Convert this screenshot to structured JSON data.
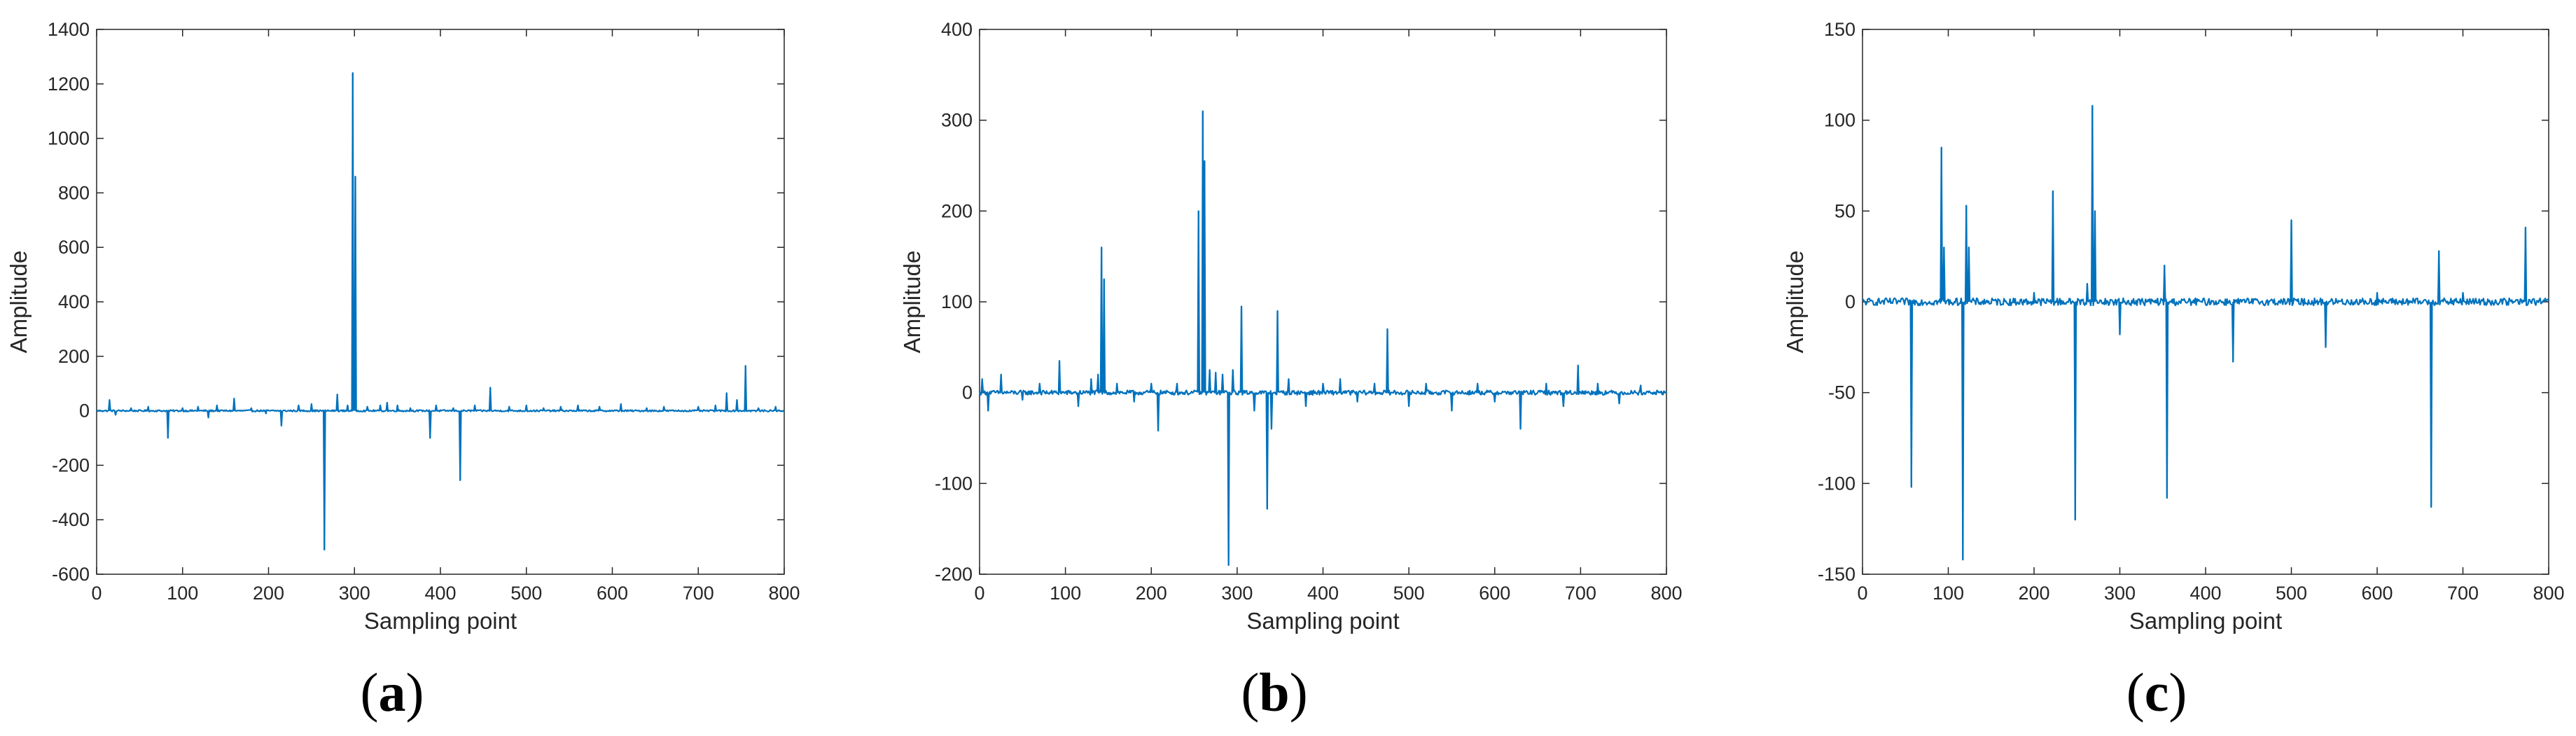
{
  "figure": {
    "series_color": "#0072BD",
    "axis_color": "#262626"
  },
  "chart_data": [
    {
      "type": "line",
      "panel_label": {
        "open": "(",
        "letter": "a",
        "close": ")"
      },
      "xlabel": "Sampling point",
      "ylabel": "Amplitude",
      "xlim": [
        0,
        800
      ],
      "ylim": [
        -600,
        1400
      ],
      "xticks": [
        0,
        100,
        200,
        300,
        400,
        500,
        600,
        700,
        800
      ],
      "yticks": [
        -600,
        -400,
        -200,
        0,
        200,
        400,
        600,
        800,
        1000,
        1200,
        1400
      ],
      "noise_amplitude": 3,
      "spikes": [
        [
          15,
          40
        ],
        [
          22,
          -15
        ],
        [
          40,
          10
        ],
        [
          60,
          15
        ],
        [
          83,
          -100
        ],
        [
          100,
          10
        ],
        [
          118,
          15
        ],
        [
          130,
          -25
        ],
        [
          140,
          20
        ],
        [
          160,
          45
        ],
        [
          180,
          10
        ],
        [
          197,
          -10
        ],
        [
          215,
          -55
        ],
        [
          235,
          20
        ],
        [
          250,
          25
        ],
        [
          265,
          -510
        ],
        [
          280,
          60
        ],
        [
          292,
          20
        ],
        [
          298,
          1240
        ],
        [
          301,
          860
        ],
        [
          315,
          15
        ],
        [
          330,
          20
        ],
        [
          338,
          30
        ],
        [
          350,
          20
        ],
        [
          365,
          10
        ],
        [
          388,
          -100
        ],
        [
          395,
          20
        ],
        [
          415,
          10
        ],
        [
          423,
          -255
        ],
        [
          440,
          20
        ],
        [
          458,
          85
        ],
        [
          480,
          15
        ],
        [
          500,
          20
        ],
        [
          520,
          10
        ],
        [
          540,
          15
        ],
        [
          560,
          20
        ],
        [
          585,
          15
        ],
        [
          610,
          25
        ],
        [
          640,
          10
        ],
        [
          660,
          15
        ],
        [
          700,
          15
        ],
        [
          720,
          20
        ],
        [
          733,
          65
        ],
        [
          745,
          40
        ],
        [
          755,
          165
        ],
        [
          770,
          10
        ],
        [
          790,
          15
        ]
      ]
    },
    {
      "type": "line",
      "panel_label": {
        "open": "(",
        "letter": "b",
        "close": ")"
      },
      "xlabel": "Sampling point",
      "ylabel": "Amplitude",
      "xlim": [
        0,
        800
      ],
      "ylim": [
        -200,
        400
      ],
      "xticks": [
        0,
        100,
        200,
        300,
        400,
        500,
        600,
        700,
        800
      ],
      "yticks": [
        -200,
        -100,
        0,
        100,
        200,
        300,
        400
      ],
      "noise_amplitude": 2.5,
      "spikes": [
        [
          3,
          15
        ],
        [
          10,
          -20
        ],
        [
          25,
          20
        ],
        [
          50,
          -8
        ],
        [
          70,
          10
        ],
        [
          93,
          35
        ],
        [
          115,
          -15
        ],
        [
          130,
          15
        ],
        [
          138,
          20
        ],
        [
          142,
          160
        ],
        [
          145,
          125
        ],
        [
          160,
          10
        ],
        [
          180,
          -10
        ],
        [
          200,
          10
        ],
        [
          208,
          -42
        ],
        [
          230,
          10
        ],
        [
          255,
          200
        ],
        [
          260,
          310
        ],
        [
          262,
          255
        ],
        [
          268,
          25
        ],
        [
          275,
          22
        ],
        [
          283,
          20
        ],
        [
          290,
          -190
        ],
        [
          295,
          25
        ],
        [
          305,
          95
        ],
        [
          320,
          -20
        ],
        [
          335,
          -128
        ],
        [
          340,
          -40
        ],
        [
          347,
          90
        ],
        [
          360,
          15
        ],
        [
          380,
          -15
        ],
        [
          400,
          10
        ],
        [
          420,
          15
        ],
        [
          440,
          -10
        ],
        [
          460,
          10
        ],
        [
          475,
          70
        ],
        [
          500,
          -15
        ],
        [
          520,
          10
        ],
        [
          550,
          -20
        ],
        [
          580,
          10
        ],
        [
          600,
          -10
        ],
        [
          630,
          -40
        ],
        [
          660,
          10
        ],
        [
          680,
          -15
        ],
        [
          697,
          30
        ],
        [
          720,
          10
        ],
        [
          745,
          -12
        ],
        [
          770,
          8
        ]
      ]
    },
    {
      "type": "line",
      "panel_label": {
        "open": "(",
        "letter": "c",
        "close": ")"
      },
      "xlabel": "Sampling point",
      "ylabel": "Amplitude",
      "xlim": [
        0,
        800
      ],
      "ylim": [
        -150,
        150
      ],
      "xticks": [
        0,
        100,
        200,
        300,
        400,
        500,
        600,
        700,
        800
      ],
      "yticks": [
        -150,
        -100,
        -50,
        0,
        50,
        100,
        150
      ],
      "noise_amplitude": 2,
      "spikes": [
        [
          57,
          -102
        ],
        [
          92,
          85
        ],
        [
          95,
          30
        ],
        [
          117,
          -142
        ],
        [
          121,
          53
        ],
        [
          124,
          30
        ],
        [
          200,
          5
        ],
        [
          222,
          61
        ],
        [
          248,
          -120
        ],
        [
          262,
          10
        ],
        [
          268,
          108
        ],
        [
          271,
          50
        ],
        [
          300,
          -18
        ],
        [
          352,
          20
        ],
        [
          355,
          -108
        ],
        [
          432,
          -33
        ],
        [
          500,
          45
        ],
        [
          540,
          -25
        ],
        [
          600,
          5
        ],
        [
          663,
          -113
        ],
        [
          672,
          28
        ],
        [
          700,
          5
        ],
        [
          773,
          41
        ]
      ]
    }
  ]
}
